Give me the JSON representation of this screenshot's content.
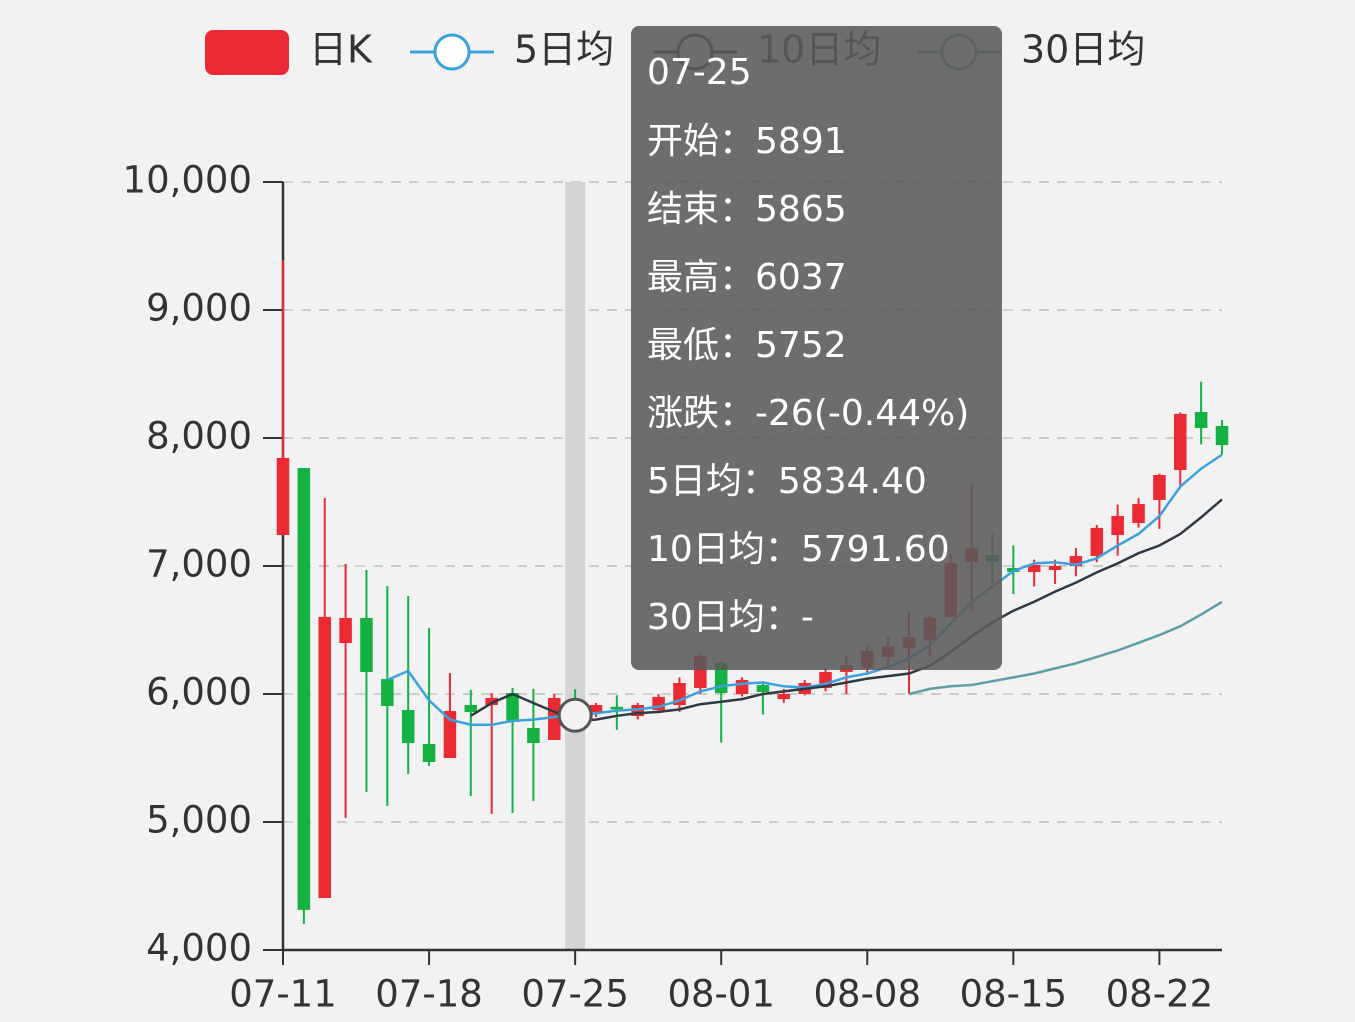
{
  "chart_data": {
    "type": "candlestick",
    "categories": [
      "07-11",
      null,
      null,
      null,
      null,
      null,
      null,
      "07-18",
      null,
      null,
      null,
      null,
      null,
      null,
      "07-25",
      null,
      null,
      null,
      null,
      null,
      null,
      "08-01",
      null,
      null,
      null,
      null,
      null,
      null,
      "08-08",
      null,
      null,
      null,
      null,
      null,
      null,
      "08-15",
      null,
      null,
      null,
      null,
      null,
      null,
      "08-22",
      null,
      null,
      null
    ],
    "ylim": [
      4000,
      10000
    ],
    "yticks": [
      {
        "value": 4000,
        "label": "4,000"
      },
      {
        "value": 5000,
        "label": "5,000"
      },
      {
        "value": 6000,
        "label": "6,000"
      },
      {
        "value": 7000,
        "label": "7,000"
      },
      {
        "value": 8000,
        "label": "8,000"
      },
      {
        "value": 9000,
        "label": "9,000"
      },
      {
        "value": 10000,
        "label": "10,000"
      }
    ],
    "grid": true,
    "series": [
      {
        "name": "日K",
        "type": "candlestick",
        "color": "#ec2a33",
        "down_color": "#14b143",
        "open": [
          7242,
          7766,
          4406,
          6398,
          6594,
          6117,
          5875,
          5609,
          5500,
          5914,
          5914,
          6008,
          5734,
          5641,
          5891,
          5859,
          5900,
          5828,
          5875,
          5914,
          6047,
          6242,
          6000,
          6070,
          5960,
          6000,
          6047,
          6172,
          6203,
          6289,
          6359,
          6422,
          6602,
          7031,
          7086,
          6984,
          6953,
          6969,
          7000,
          7078,
          7242,
          7336,
          7516,
          7750,
          8203,
          8094
        ],
        "close": [
          7844,
          4313,
          6602,
          6594,
          6172,
          5906,
          5617,
          5469,
          5867,
          5859,
          5969,
          5781,
          5617,
          5969,
          5865,
          5914,
          5880,
          5914,
          5977,
          6086,
          6297,
          6008,
          6109,
          6016,
          6000,
          6086,
          6172,
          6227,
          6336,
          6375,
          6445,
          6594,
          7023,
          7141,
          7031,
          6953,
          7008,
          7000,
          7078,
          7297,
          7391,
          7484,
          7711,
          8188,
          8078,
          7945
        ],
        "high": [
          9390,
          7766,
          7531,
          7016,
          6969,
          6844,
          6766,
          6516,
          6164,
          6031,
          6008,
          6047,
          6039,
          6000,
          6037,
          5930,
          5990,
          5930,
          6000,
          6130,
          6320,
          6250,
          6130,
          6100,
          6040,
          6110,
          6200,
          6290,
          6380,
          6450,
          6650,
          6610,
          7100,
          7640,
          7250,
          7160,
          7050,
          7050,
          7140,
          7320,
          7480,
          7530,
          7720,
          8200,
          8440,
          8140
        ],
        "low": [
          7242,
          4203,
          4406,
          5031,
          5234,
          5125,
          5375,
          5438,
          5500,
          5203,
          5063,
          5070,
          5164,
          5641,
          5752,
          5820,
          5720,
          5800,
          5850,
          5860,
          6000,
          5620,
          5980,
          5840,
          5930,
          5990,
          6020,
          6000,
          6150,
          6230,
          6000,
          6300,
          6600,
          6650,
          6860,
          6780,
          6840,
          6860,
          6920,
          7030,
          7080,
          7300,
          7290,
          7630,
          7950,
          7870
        ]
      },
      {
        "name": "5日均",
        "type": "line",
        "color": "#3ba2dd",
        "values": [
          null,
          null,
          null,
          null,
          null,
          6110,
          6180,
          5950,
          5800,
          5760,
          5760,
          5790,
          5800,
          5820,
          5834.4,
          5850,
          5870,
          5880,
          5900,
          5950,
          6020,
          6060,
          6080,
          6090,
          6060,
          6050,
          6080,
          6130,
          6160,
          6210,
          6280,
          6380,
          6550,
          6720,
          6840,
          6960,
          7020,
          7030,
          7010,
          7060,
          7160,
          7250,
          7390,
          7620,
          7760,
          7870
        ]
      },
      {
        "name": "10日均",
        "type": "line",
        "color": "#2f3a45",
        "values": [
          null,
          null,
          null,
          null,
          null,
          null,
          null,
          null,
          null,
          5830,
          5930,
          6000,
          5930,
          5860,
          5791.6,
          5800,
          5830,
          5850,
          5860,
          5880,
          5920,
          5940,
          5960,
          6000,
          6020,
          6040,
          6060,
          6090,
          6120,
          6140,
          6160,
          6220,
          6330,
          6450,
          6560,
          6650,
          6720,
          6800,
          6870,
          6950,
          7020,
          7100,
          7160,
          7250,
          7380,
          7520
        ]
      },
      {
        "name": "30日均",
        "type": "line",
        "color": "#5f9ea6",
        "values": [
          null,
          null,
          null,
          null,
          null,
          null,
          null,
          null,
          null,
          null,
          null,
          null,
          null,
          null,
          null,
          null,
          null,
          null,
          null,
          null,
          null,
          null,
          null,
          null,
          null,
          null,
          null,
          null,
          null,
          null,
          6000,
          6040,
          6060,
          6070,
          6100,
          6130,
          6160,
          6200,
          6240,
          6290,
          6340,
          6400,
          6460,
          6530,
          6620,
          6720
        ]
      }
    ],
    "tooltip": {
      "title": "07-25",
      "rows": [
        {
          "label": "开始：",
          "value": "5891"
        },
        {
          "label": "结束：",
          "value": "5865"
        },
        {
          "label": "最高：",
          "value": "6037"
        },
        {
          "label": "最低：",
          "value": "5752"
        },
        {
          "label": "涨跌：",
          "value": "-26(-0.44%)"
        },
        {
          "label": "5日均：",
          "value": "5834.40"
        },
        {
          "label": "10日均：",
          "value": "5791.60"
        },
        {
          "label": "30日均：",
          "value": "-"
        }
      ]
    },
    "hover_index": 14
  }
}
